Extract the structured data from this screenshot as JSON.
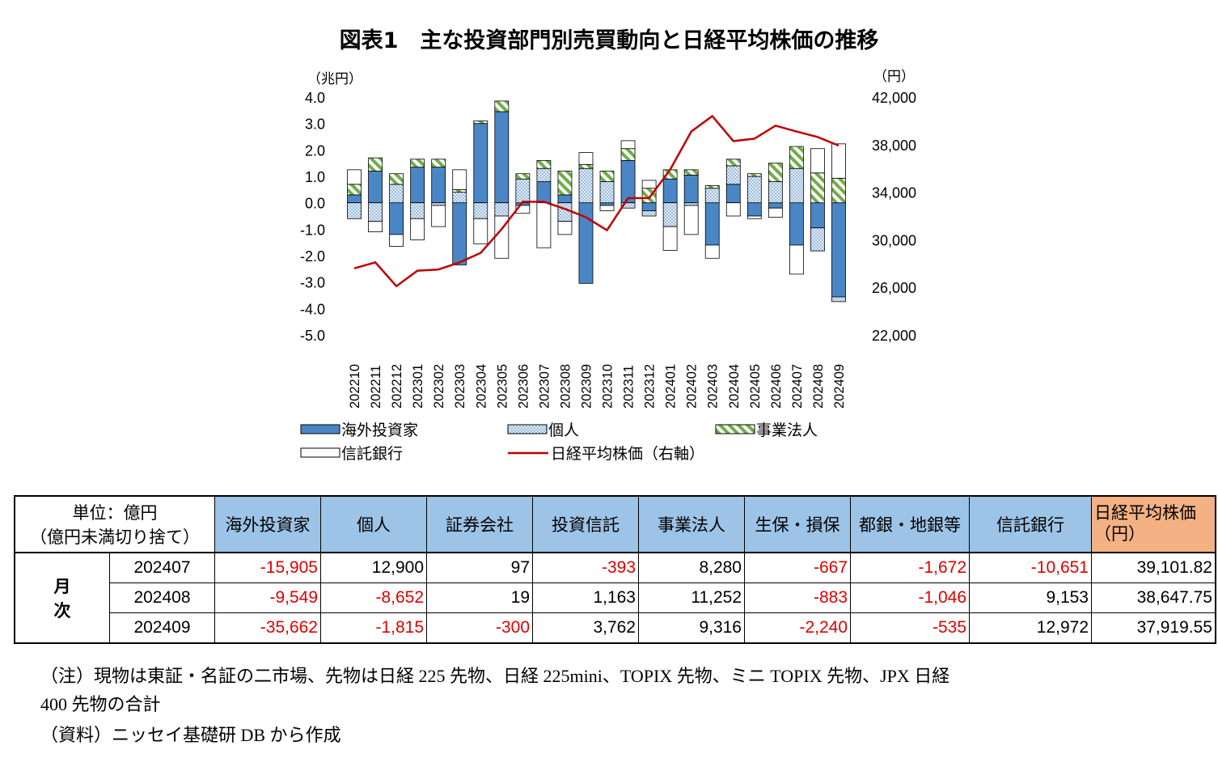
{
  "title": "図表1　主な投資部門別売買動向と日経平均株価の推移",
  "chart_data": {
    "type": "bar",
    "stacked": true,
    "categories": [
      "202210",
      "202211",
      "202212",
      "202301",
      "202302",
      "202303",
      "202304",
      "202305",
      "202306",
      "202307",
      "202308",
      "202309",
      "202310",
      "202311",
      "202312",
      "202401",
      "202402",
      "202403",
      "202404",
      "202405",
      "202406",
      "202407",
      "202408",
      "202409"
    ],
    "left_axis": {
      "unit_label": "（兆円）",
      "ylim": [
        -5.0,
        4.0
      ],
      "ticks": [
        "4.0",
        "3.0",
        "2.0",
        "1.0",
        "0.0",
        "-1.0",
        "-2.0",
        "-3.0",
        "-4.0",
        "-5.0"
      ]
    },
    "right_axis": {
      "unit_label": "（円）",
      "ylim": [
        22000,
        42000
      ],
      "ticks": [
        "42,000",
        "38,000",
        "34,000",
        "30,000",
        "26,000",
        "22,000"
      ]
    },
    "series": [
      {
        "name": "海外投資家",
        "color": "#4a86c6",
        "axis": "left",
        "values": [
          0.3,
          1.2,
          -1.2,
          1.35,
          1.35,
          -2.35,
          3.0,
          3.45,
          -0.1,
          0.8,
          0.3,
          -3.05,
          -0.1,
          1.6,
          -0.3,
          0.9,
          1.05,
          -1.6,
          0.7,
          -0.5,
          -0.2,
          -1.6,
          -0.95,
          -3.56
        ]
      },
      {
        "name": "個人",
        "color": "#dce7f2",
        "axis": "left",
        "values": [
          -0.6,
          -0.7,
          0.7,
          -0.6,
          -0.1,
          0.4,
          -0.6,
          -0.5,
          0.9,
          0.5,
          -0.7,
          1.3,
          0.8,
          -0.2,
          -0.2,
          -0.9,
          -0.1,
          0.55,
          0.7,
          1.0,
          0.8,
          1.3,
          -0.87,
          -0.18
        ]
      },
      {
        "name": "事業法人",
        "color": "#70ad47",
        "axis": "left",
        "values": [
          0.4,
          0.5,
          0.4,
          0.3,
          0.3,
          0.1,
          0.1,
          0.4,
          0.2,
          0.3,
          0.9,
          0.15,
          0.4,
          0.45,
          0.55,
          0.35,
          0.2,
          0.1,
          0.25,
          0.1,
          0.7,
          0.83,
          1.13,
          0.93
        ]
      },
      {
        "name": "信託銀行",
        "color": "#ffffff",
        "axis": "left",
        "values": [
          0.55,
          -0.4,
          -0.45,
          -0.8,
          -0.8,
          0.75,
          -0.95,
          -1.6,
          -0.3,
          -1.7,
          -0.5,
          0.45,
          -0.2,
          0.3,
          0.3,
          -0.9,
          -1.1,
          -0.5,
          -0.5,
          -0.1,
          -0.35,
          -1.1,
          0.92,
          1.3
        ]
      },
      {
        "name": "日経平均株価（右軸）",
        "color": "#c00000",
        "axis": "right",
        "type": "line",
        "values": [
          27600,
          28100,
          26100,
          27400,
          27500,
          28100,
          28900,
          30900,
          33200,
          33200,
          32600,
          31900,
          30800,
          33500,
          33500,
          35900,
          39100,
          40400,
          38300,
          38500,
          39600,
          39102,
          38648,
          37920
        ]
      }
    ],
    "legend": "bottom"
  },
  "table": {
    "unit_header": [
      "単位：億円",
      "（億円未満切り捨て）"
    ],
    "columns": [
      "海外投資家",
      "個人",
      "証券会社",
      "投資信託",
      "事業法人",
      "生保・損保",
      "都銀・地銀等",
      "信託銀行"
    ],
    "nikkei_header": [
      "日経平均株価",
      "（円）"
    ],
    "row_group_label": [
      "月",
      "次"
    ],
    "rows": [
      {
        "month": "202407",
        "values": [
          "-15,905",
          "12,900",
          "97",
          "-393",
          "8,280",
          "-667",
          "-1,672",
          "-10,651"
        ],
        "nikkei": "39,101.82"
      },
      {
        "month": "202408",
        "values": [
          "-9,549",
          "-8,652",
          "19",
          "1,163",
          "11,252",
          "-883",
          "-1,046",
          "9,153"
        ],
        "nikkei": "38,647.75"
      },
      {
        "month": "202409",
        "values": [
          "-35,662",
          "-1,815",
          "-300",
          "3,762",
          "9,316",
          "-2,240",
          "-535",
          "12,972"
        ],
        "nikkei": "37,919.55"
      }
    ]
  },
  "notes": {
    "note_line1": "（注）現物は東証・名証の二市場、先物は日経 225 先物、日経 225mini、TOPIX 先物、ミニ TOPIX 先物、JPX 日経",
    "note_line2": "400 先物の合計",
    "source": "（資料）ニッセイ基礎研 DB から作成"
  }
}
